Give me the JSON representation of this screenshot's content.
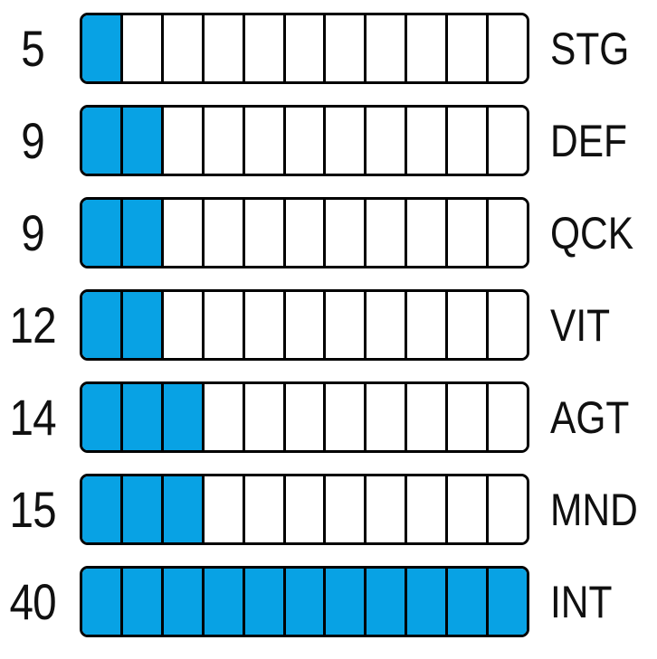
{
  "stats": {
    "rows": [
      {
        "value": "5",
        "label": "STG",
        "filled": 1,
        "total": 11
      },
      {
        "value": "9",
        "label": "DEF",
        "filled": 2,
        "total": 11
      },
      {
        "value": "9",
        "label": "QCK",
        "filled": 2,
        "total": 11
      },
      {
        "value": "12",
        "label": "VIT",
        "filled": 2,
        "total": 11
      },
      {
        "value": "14",
        "label": "AGT",
        "filled": 3,
        "total": 11
      },
      {
        "value": "15",
        "label": "MND",
        "filled": 3,
        "total": 11
      },
      {
        "value": "40",
        "label": "INT",
        "filled": 11,
        "total": 11
      }
    ],
    "colors": {
      "fill": "#08a2e4",
      "empty": "#ffffff",
      "border": "#000000",
      "text": "#101010",
      "background": "#ffffff"
    }
  },
  "chart_data": {
    "type": "bar",
    "orientation": "horizontal",
    "categories": [
      "STG",
      "DEF",
      "QCK",
      "VIT",
      "AGT",
      "MND",
      "INT"
    ],
    "values": [
      5,
      9,
      9,
      12,
      14,
      15,
      40
    ],
    "series": [
      {
        "name": "segments_filled",
        "values": [
          1,
          2,
          2,
          2,
          3,
          3,
          11
        ]
      },
      {
        "name": "segments_total",
        "values": [
          11,
          11,
          11,
          11,
          11,
          11,
          11
        ]
      }
    ],
    "title": "",
    "xlabel": "",
    "ylabel": "",
    "legend": false,
    "grid": false,
    "notes": "Each row: numeric stat value on the left, 11-segment pip bar, stat abbreviation label on the right."
  }
}
